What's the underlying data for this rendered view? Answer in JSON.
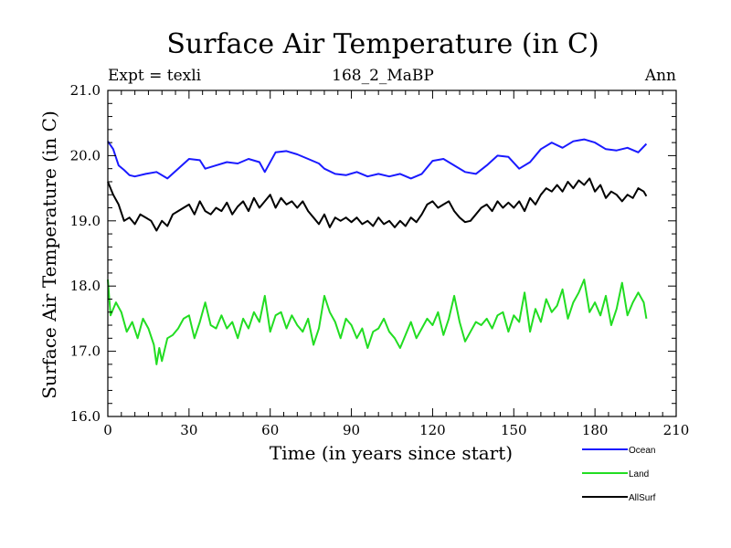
{
  "chart_data": {
    "type": "line",
    "title": "Surface Air Temperature (in C)",
    "subtitle": "168_2_MaBP",
    "left_label": "Expt = texli",
    "right_label": "Ann",
    "xlabel": "Time (in years since start)",
    "ylabel": "Surface Air Temperature (in C)",
    "xlim": [
      0,
      210
    ],
    "ylim": [
      16.0,
      21.0
    ],
    "xticks": [
      0,
      30,
      60,
      90,
      120,
      150,
      180,
      210
    ],
    "yticks": [
      "16.0",
      "17.0",
      "18.0",
      "19.0",
      "20.0",
      "21.0"
    ],
    "legend_position": "bottom-right",
    "series": [
      {
        "name": "Ocean",
        "color": "#1a1aff",
        "keypoints": [
          [
            0,
            20.22
          ],
          [
            2,
            20.1
          ],
          [
            4,
            19.85
          ],
          [
            6,
            19.78
          ],
          [
            8,
            19.7
          ],
          [
            10,
            19.68
          ],
          [
            14,
            19.72
          ],
          [
            18,
            19.75
          ],
          [
            22,
            19.65
          ],
          [
            26,
            19.8
          ],
          [
            30,
            19.95
          ],
          [
            34,
            19.93
          ],
          [
            36,
            19.8
          ],
          [
            40,
            19.85
          ],
          [
            44,
            19.9
          ],
          [
            48,
            19.88
          ],
          [
            52,
            19.95
          ],
          [
            56,
            19.9
          ],
          [
            58,
            19.75
          ],
          [
            62,
            20.05
          ],
          [
            66,
            20.07
          ],
          [
            70,
            20.02
          ],
          [
            74,
            19.95
          ],
          [
            78,
            19.88
          ],
          [
            80,
            19.8
          ],
          [
            84,
            19.72
          ],
          [
            88,
            19.7
          ],
          [
            92,
            19.75
          ],
          [
            96,
            19.68
          ],
          [
            100,
            19.72
          ],
          [
            104,
            19.68
          ],
          [
            108,
            19.72
          ],
          [
            112,
            19.65
          ],
          [
            116,
            19.72
          ],
          [
            120,
            19.92
          ],
          [
            124,
            19.95
          ],
          [
            128,
            19.85
          ],
          [
            132,
            19.75
          ],
          [
            136,
            19.72
          ],
          [
            140,
            19.85
          ],
          [
            144,
            20.0
          ],
          [
            148,
            19.98
          ],
          [
            152,
            19.8
          ],
          [
            156,
            19.9
          ],
          [
            160,
            20.1
          ],
          [
            164,
            20.2
          ],
          [
            168,
            20.12
          ],
          [
            172,
            20.22
          ],
          [
            176,
            20.25
          ],
          [
            180,
            20.2
          ],
          [
            184,
            20.1
          ],
          [
            188,
            20.08
          ],
          [
            192,
            20.12
          ],
          [
            196,
            20.05
          ],
          [
            199,
            20.18
          ]
        ]
      },
      {
        "name": "Land",
        "color": "#22dd22",
        "keypoints": [
          [
            0,
            18.1
          ],
          [
            1,
            17.55
          ],
          [
            3,
            17.75
          ],
          [
            5,
            17.6
          ],
          [
            7,
            17.3
          ],
          [
            9,
            17.45
          ],
          [
            11,
            17.2
          ],
          [
            13,
            17.5
          ],
          [
            15,
            17.35
          ],
          [
            17,
            17.1
          ],
          [
            18,
            16.8
          ],
          [
            19,
            17.05
          ],
          [
            20,
            16.85
          ],
          [
            22,
            17.2
          ],
          [
            24,
            17.25
          ],
          [
            26,
            17.35
          ],
          [
            28,
            17.5
          ],
          [
            30,
            17.55
          ],
          [
            32,
            17.2
          ],
          [
            34,
            17.45
          ],
          [
            36,
            17.75
          ],
          [
            38,
            17.4
          ],
          [
            40,
            17.35
          ],
          [
            42,
            17.55
          ],
          [
            44,
            17.35
          ],
          [
            46,
            17.45
          ],
          [
            48,
            17.2
          ],
          [
            50,
            17.5
          ],
          [
            52,
            17.35
          ],
          [
            54,
            17.6
          ],
          [
            56,
            17.45
          ],
          [
            58,
            17.85
          ],
          [
            60,
            17.3
          ],
          [
            62,
            17.55
          ],
          [
            64,
            17.6
          ],
          [
            66,
            17.35
          ],
          [
            68,
            17.55
          ],
          [
            70,
            17.4
          ],
          [
            72,
            17.3
          ],
          [
            74,
            17.5
          ],
          [
            76,
            17.1
          ],
          [
            78,
            17.35
          ],
          [
            80,
            17.85
          ],
          [
            82,
            17.6
          ],
          [
            84,
            17.45
          ],
          [
            86,
            17.2
          ],
          [
            88,
            17.5
          ],
          [
            90,
            17.4
          ],
          [
            92,
            17.2
          ],
          [
            94,
            17.35
          ],
          [
            96,
            17.05
          ],
          [
            98,
            17.3
          ],
          [
            100,
            17.35
          ],
          [
            102,
            17.5
          ],
          [
            104,
            17.3
          ],
          [
            106,
            17.2
          ],
          [
            108,
            17.05
          ],
          [
            110,
            17.25
          ],
          [
            112,
            17.45
          ],
          [
            114,
            17.2
          ],
          [
            116,
            17.35
          ],
          [
            118,
            17.5
          ],
          [
            120,
            17.4
          ],
          [
            122,
            17.6
          ],
          [
            124,
            17.25
          ],
          [
            126,
            17.5
          ],
          [
            128,
            17.85
          ],
          [
            130,
            17.45
          ],
          [
            132,
            17.15
          ],
          [
            134,
            17.3
          ],
          [
            136,
            17.45
          ],
          [
            138,
            17.4
          ],
          [
            140,
            17.5
          ],
          [
            142,
            17.35
          ],
          [
            144,
            17.55
          ],
          [
            146,
            17.6
          ],
          [
            148,
            17.3
          ],
          [
            150,
            17.55
          ],
          [
            152,
            17.45
          ],
          [
            154,
            17.9
          ],
          [
            156,
            17.3
          ],
          [
            158,
            17.65
          ],
          [
            160,
            17.45
          ],
          [
            162,
            17.8
          ],
          [
            164,
            17.6
          ],
          [
            166,
            17.7
          ],
          [
            168,
            17.95
          ],
          [
            170,
            17.5
          ],
          [
            172,
            17.75
          ],
          [
            174,
            17.9
          ],
          [
            176,
            18.1
          ],
          [
            178,
            17.6
          ],
          [
            180,
            17.75
          ],
          [
            182,
            17.55
          ],
          [
            184,
            17.85
          ],
          [
            186,
            17.4
          ],
          [
            188,
            17.65
          ],
          [
            190,
            18.05
          ],
          [
            192,
            17.55
          ],
          [
            194,
            17.75
          ],
          [
            196,
            17.9
          ],
          [
            198,
            17.75
          ],
          [
            199,
            17.5
          ]
        ]
      },
      {
        "name": "AllSurf",
        "color": "#000000",
        "keypoints": [
          [
            0,
            19.6
          ],
          [
            2,
            19.4
          ],
          [
            4,
            19.25
          ],
          [
            6,
            19.0
          ],
          [
            8,
            19.05
          ],
          [
            10,
            18.95
          ],
          [
            12,
            19.1
          ],
          [
            14,
            19.05
          ],
          [
            16,
            19.0
          ],
          [
            18,
            18.85
          ],
          [
            20,
            19.0
          ],
          [
            22,
            18.92
          ],
          [
            24,
            19.1
          ],
          [
            26,
            19.15
          ],
          [
            28,
            19.2
          ],
          [
            30,
            19.25
          ],
          [
            32,
            19.1
          ],
          [
            34,
            19.3
          ],
          [
            36,
            19.15
          ],
          [
            38,
            19.1
          ],
          [
            40,
            19.2
          ],
          [
            42,
            19.15
          ],
          [
            44,
            19.28
          ],
          [
            46,
            19.1
          ],
          [
            48,
            19.22
          ],
          [
            50,
            19.3
          ],
          [
            52,
            19.15
          ],
          [
            54,
            19.35
          ],
          [
            56,
            19.2
          ],
          [
            58,
            19.3
          ],
          [
            60,
            19.4
          ],
          [
            62,
            19.2
          ],
          [
            64,
            19.35
          ],
          [
            66,
            19.25
          ],
          [
            68,
            19.3
          ],
          [
            70,
            19.2
          ],
          [
            72,
            19.3
          ],
          [
            74,
            19.15
          ],
          [
            76,
            19.05
          ],
          [
            78,
            18.95
          ],
          [
            80,
            19.1
          ],
          [
            82,
            18.9
          ],
          [
            84,
            19.05
          ],
          [
            86,
            19.0
          ],
          [
            88,
            19.05
          ],
          [
            90,
            18.98
          ],
          [
            92,
            19.05
          ],
          [
            94,
            18.95
          ],
          [
            96,
            19.0
          ],
          [
            98,
            18.92
          ],
          [
            100,
            19.05
          ],
          [
            102,
            18.95
          ],
          [
            104,
            19.0
          ],
          [
            106,
            18.9
          ],
          [
            108,
            19.0
          ],
          [
            110,
            18.92
          ],
          [
            112,
            19.05
          ],
          [
            114,
            18.98
          ],
          [
            116,
            19.1
          ],
          [
            118,
            19.25
          ],
          [
            120,
            19.3
          ],
          [
            122,
            19.2
          ],
          [
            124,
            19.25
          ],
          [
            126,
            19.3
          ],
          [
            128,
            19.15
          ],
          [
            130,
            19.05
          ],
          [
            132,
            18.98
          ],
          [
            134,
            19.0
          ],
          [
            136,
            19.1
          ],
          [
            138,
            19.2
          ],
          [
            140,
            19.25
          ],
          [
            142,
            19.15
          ],
          [
            144,
            19.3
          ],
          [
            146,
            19.2
          ],
          [
            148,
            19.28
          ],
          [
            150,
            19.2
          ],
          [
            152,
            19.3
          ],
          [
            154,
            19.15
          ],
          [
            156,
            19.35
          ],
          [
            158,
            19.25
          ],
          [
            160,
            19.4
          ],
          [
            162,
            19.5
          ],
          [
            164,
            19.45
          ],
          [
            166,
            19.55
          ],
          [
            168,
            19.45
          ],
          [
            170,
            19.6
          ],
          [
            172,
            19.5
          ],
          [
            174,
            19.62
          ],
          [
            176,
            19.55
          ],
          [
            178,
            19.65
          ],
          [
            180,
            19.45
          ],
          [
            182,
            19.55
          ],
          [
            184,
            19.35
          ],
          [
            186,
            19.45
          ],
          [
            188,
            19.4
          ],
          [
            190,
            19.3
          ],
          [
            192,
            19.4
          ],
          [
            194,
            19.35
          ],
          [
            196,
            19.5
          ],
          [
            198,
            19.45
          ],
          [
            199,
            19.38
          ]
        ]
      }
    ]
  }
}
